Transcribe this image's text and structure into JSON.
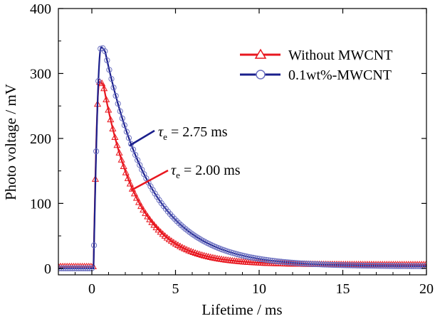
{
  "chart_data": {
    "type": "line",
    "xlabel": "Lifetime / ms",
    "ylabel": "Photo voltage / mV",
    "xlim": [
      -2,
      20
    ],
    "ylim": [
      -10,
      400
    ],
    "x_ticks": [
      "0",
      "5",
      "10",
      "15",
      "20"
    ],
    "y_ticks": [
      "0",
      "100",
      "200",
      "300",
      "400"
    ],
    "grid": false,
    "legend_position": "top-right",
    "series": [
      {
        "name": "Without MWCNT",
        "color": "#e8171f",
        "marker": "triangle-open",
        "baseline": 3,
        "rise_time": 0.1,
        "peak_time": 0.45,
        "peak": 287,
        "tail_start": 0.7,
        "tau": 2.0,
        "plateau": 6
      },
      {
        "name": "0.1wt%-MWCNT",
        "color": "#1a1f8c",
        "marker": "circle-open",
        "baseline": 0,
        "rise_time": 0.1,
        "peak_time": 0.55,
        "peak": 340,
        "tail_start": 0.8,
        "tau": 2.75,
        "plateau": 3
      }
    ],
    "annotations": [
      {
        "tau_symbol": "τ",
        "subscript": "e",
        "rest": " = 2.75 ms",
        "series": "0.1wt%-MWCNT"
      },
      {
        "tau_symbol": "τ",
        "subscript": "e",
        "rest": " = 2.00 ms",
        "series": "Without MWCNT"
      }
    ]
  }
}
